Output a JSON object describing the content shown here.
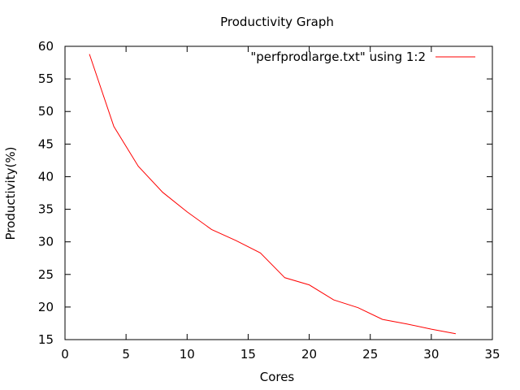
{
  "chart_data": {
    "type": "line",
    "title": "Productivity Graph",
    "xlabel": "Cores",
    "ylabel": "Productivity(%)",
    "xlim": [
      0,
      35
    ],
    "ylim": [
      15,
      60
    ],
    "xticks": [
      0,
      5,
      10,
      15,
      20,
      25,
      30,
      35
    ],
    "yticks": [
      15,
      20,
      25,
      30,
      35,
      40,
      45,
      50,
      55,
      60
    ],
    "grid": false,
    "legend_position": "top-right",
    "series": [
      {
        "name": "\"perfprodlarge.txt\" using 1:2",
        "color": "#ff0000",
        "x": [
          2,
          4,
          6,
          8,
          10,
          12,
          14,
          16,
          18,
          20,
          22,
          24,
          26,
          28,
          30,
          32
        ],
        "y": [
          58.8,
          47.7,
          41.6,
          37.6,
          34.6,
          31.9,
          30.2,
          28.3,
          24.5,
          23.4,
          21.1,
          19.9,
          18.1,
          17.4,
          16.6,
          15.9
        ]
      }
    ]
  }
}
